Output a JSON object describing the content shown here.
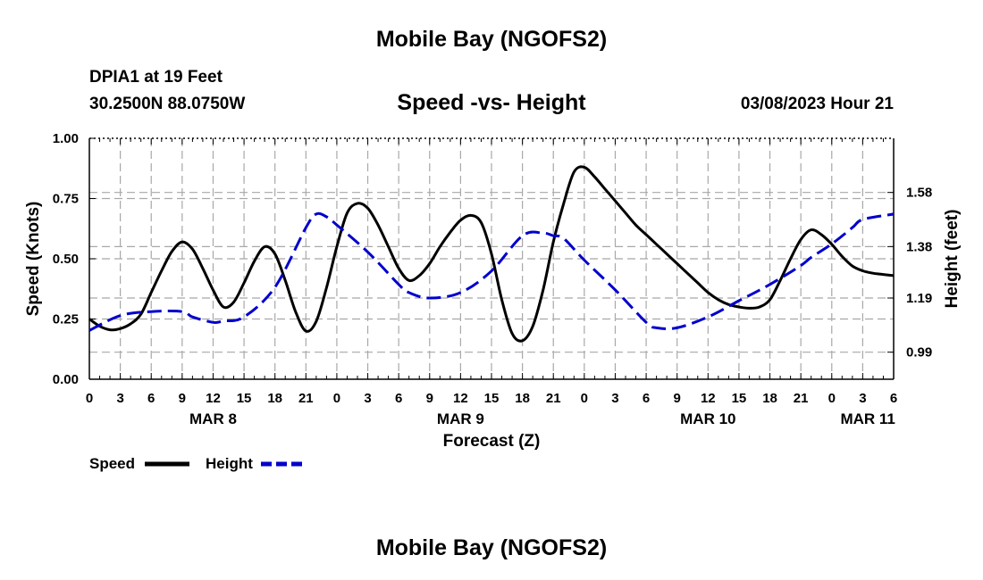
{
  "figure": {
    "title": "Mobile Bay (NGOFS2)",
    "footer_title": "Mobile Bay (NGOFS2)",
    "station": "DPIA1 at 19 Feet",
    "coords": "30.2500N  88.0750W",
    "subtitle": "Speed -vs- Height",
    "timestamp": "03/08/2023 Hour 21"
  },
  "legend": {
    "speed": "Speed",
    "height": "Height"
  },
  "colors": {
    "speed": "#000000",
    "height": "#0000cc",
    "grid": "#a8a8a8"
  },
  "chart_data": {
    "type": "line",
    "title": "Speed -vs- Height",
    "xlabel": "Forecast (Z)",
    "ylabel": "Speed (Knots)",
    "y2label": "Height (feet)",
    "xlim": [
      0,
      78
    ],
    "ylim": [
      0,
      1
    ],
    "y2lim": [
      0.89,
      1.78
    ],
    "x_ticks": [
      0,
      3,
      6,
      9,
      12,
      15,
      18,
      21,
      24,
      27,
      30,
      33,
      36,
      39,
      42,
      45,
      48,
      51,
      54,
      57,
      60,
      63,
      66,
      69,
      72,
      75,
      78
    ],
    "x_tick_labels": [
      "0",
      "3",
      "6",
      "9",
      "12",
      "15",
      "18",
      "21",
      "0",
      "3",
      "6",
      "9",
      "12",
      "15",
      "18",
      "21",
      "0",
      "3",
      "6",
      "9",
      "12",
      "15",
      "18",
      "21",
      "0",
      "3",
      "6"
    ],
    "date_labels": [
      {
        "label": "MAR 8",
        "x": 12
      },
      {
        "label": "MAR 9",
        "x": 36
      },
      {
        "label": "MAR 10",
        "x": 60
      },
      {
        "label": "MAR 11",
        "x": 75.5
      }
    ],
    "y_ticks": [
      0,
      0.25,
      0.5,
      0.75,
      1.0
    ],
    "y_tick_labels": [
      "0.00",
      "0.25",
      "0.50",
      "0.75",
      "1.00"
    ],
    "y2_ticks": [
      0.99,
      1.19,
      1.38,
      1.58
    ],
    "y2_tick_labels": [
      "0.99",
      "1.19",
      "1.38",
      "1.58"
    ],
    "grid": true,
    "series": [
      {
        "name": "Speed",
        "axis": "left",
        "x": [
          0,
          1,
          2,
          3,
          4,
          5,
          6,
          7,
          8,
          9,
          10,
          11,
          12,
          13,
          14,
          15,
          16,
          17,
          18,
          19,
          20,
          21,
          22,
          23,
          24,
          25,
          26,
          27,
          28,
          29,
          30,
          31,
          32,
          33,
          34,
          35,
          36,
          37,
          38,
          39,
          40,
          41,
          42,
          43,
          44,
          45,
          46,
          47,
          48,
          49,
          50,
          51,
          52,
          53,
          54,
          55,
          56,
          57,
          58,
          59,
          60,
          61,
          62,
          63,
          64,
          65,
          66,
          67,
          68,
          69,
          70,
          71,
          72,
          73,
          74,
          75,
          76,
          77,
          78
        ],
        "values": [
          0.25,
          0.22,
          0.205,
          0.21,
          0.23,
          0.27,
          0.36,
          0.45,
          0.53,
          0.57,
          0.54,
          0.46,
          0.37,
          0.3,
          0.32,
          0.4,
          0.49,
          0.55,
          0.52,
          0.41,
          0.28,
          0.2,
          0.24,
          0.38,
          0.55,
          0.69,
          0.73,
          0.71,
          0.64,
          0.55,
          0.46,
          0.41,
          0.43,
          0.48,
          0.55,
          0.61,
          0.66,
          0.68,
          0.65,
          0.52,
          0.33,
          0.19,
          0.16,
          0.22,
          0.37,
          0.57,
          0.73,
          0.86,
          0.88,
          0.84,
          0.79,
          0.74,
          0.69,
          0.64,
          0.6,
          0.56,
          0.52,
          0.48,
          0.44,
          0.4,
          0.36,
          0.33,
          0.31,
          0.3,
          0.295,
          0.3,
          0.33,
          0.41,
          0.5,
          0.58,
          0.62,
          0.6,
          0.56,
          0.51,
          0.47,
          0.45,
          0.44,
          0.435,
          0.43
        ]
      },
      {
        "name": "Height",
        "axis": "right",
        "x": [
          0,
          3,
          6,
          9,
          10,
          12,
          13,
          15,
          18,
          21,
          22,
          23,
          24,
          27,
          30,
          31,
          33,
          36,
          39,
          42,
          44,
          45,
          46,
          48,
          51,
          54,
          55,
          57,
          60,
          63,
          66,
          69,
          70,
          72,
          74,
          75,
          78
        ],
        "values": [
          1.07,
          1.125,
          1.14,
          1.14,
          1.12,
          1.1,
          1.105,
          1.12,
          1.23,
          1.45,
          1.5,
          1.49,
          1.46,
          1.36,
          1.24,
          1.21,
          1.19,
          1.21,
          1.29,
          1.42,
          1.43,
          1.42,
          1.41,
          1.33,
          1.22,
          1.1,
          1.08,
          1.08,
          1.12,
          1.18,
          1.24,
          1.31,
          1.34,
          1.39,
          1.45,
          1.48,
          1.5
        ]
      }
    ]
  }
}
